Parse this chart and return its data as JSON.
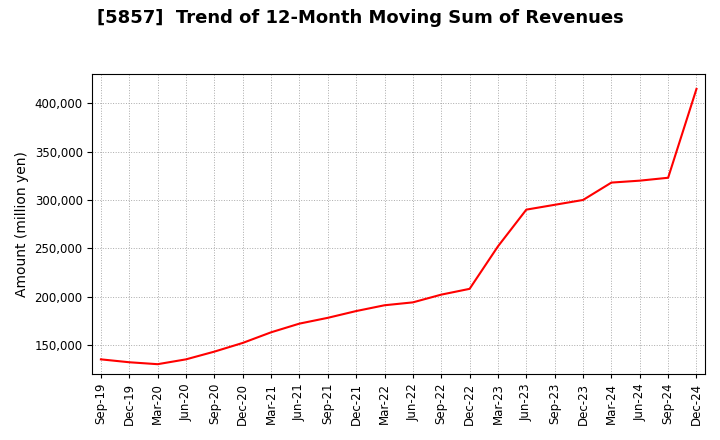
{
  "title": "[5857]  Trend of 12-Month Moving Sum of Revenues",
  "ylabel": "Amount (million yen)",
  "line_color": "#FF0000",
  "background_color": "#FFFFFF",
  "grid_color": "#AAAAAA",
  "x_labels": [
    "Sep-19",
    "Dec-19",
    "Mar-20",
    "Jun-20",
    "Sep-20",
    "Dec-20",
    "Mar-21",
    "Jun-21",
    "Sep-21",
    "Dec-21",
    "Mar-22",
    "Jun-22",
    "Sep-22",
    "Dec-22",
    "Mar-23",
    "Jun-23",
    "Sep-23",
    "Dec-23",
    "Mar-24",
    "Jun-24",
    "Sep-24",
    "Dec-24"
  ],
  "y_values": [
    135000,
    132000,
    130000,
    135000,
    143000,
    152000,
    163000,
    172000,
    178000,
    185000,
    191000,
    194000,
    202000,
    208000,
    252000,
    290000,
    295000,
    300000,
    318000,
    320000,
    323000,
    415000
  ],
  "ylim": [
    120000,
    430000
  ],
  "yticks": [
    150000,
    200000,
    250000,
    300000,
    350000,
    400000
  ],
  "title_fontsize": 13,
  "axis_label_fontsize": 10,
  "tick_fontsize": 8.5
}
